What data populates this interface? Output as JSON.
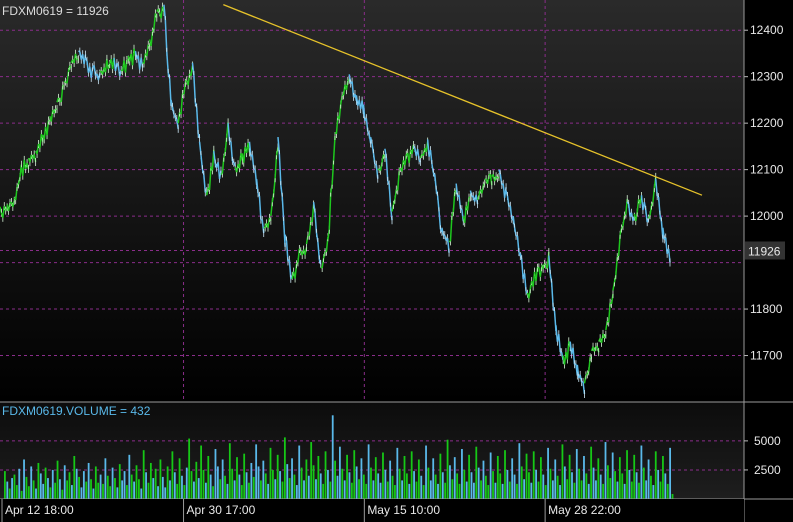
{
  "chart_data": [
    {
      "type": "line",
      "panel": "price",
      "title": "FDXM0619 = 11926",
      "symbol": "FDXM0619",
      "last_value": 11926,
      "last_value_label": "11926",
      "ylim": [
        11600,
        12465
      ],
      "y_ticks": [
        11700,
        11800,
        11900,
        12000,
        12100,
        12200,
        12300,
        12400
      ],
      "y_tick_labels": [
        "11700",
        "11800",
        "",
        "12000",
        "12100",
        "12200",
        "12300",
        "12400"
      ],
      "x_labels": [
        "Apr 12 18:00",
        "Apr 30 17:00",
        "May 15 10:00",
        "May 28 22:00"
      ],
      "x_label_positions": [
        0.0,
        0.244,
        0.487,
        0.73
      ],
      "grid": true,
      "colors": {
        "up": "#1ec81e",
        "down": "#5ab9ea",
        "trendline": "#e6c22a",
        "grid": "#8a2d8a",
        "last_badge_bg": "#333333"
      },
      "series": [
        {
          "values": [
            12020,
            12025,
            12040,
            12105,
            12125,
            12140,
            12175,
            12215,
            12245,
            12290,
            12330,
            12355,
            12340,
            12320,
            12310,
            12335,
            12340,
            12315,
            12345,
            12355,
            12330,
            12380,
            12440,
            12455,
            12250,
            12200,
            12290,
            12330,
            12160,
            12045,
            12140,
            12090,
            12200,
            12105,
            12135,
            12160,
            12080,
            11975,
            12000,
            12170,
            11960,
            11865,
            11930,
            11940,
            12030,
            11890,
            11950,
            12180,
            12260,
            12305,
            12260,
            12240,
            12170,
            12100,
            12145,
            12010,
            12100,
            12130,
            12150,
            12125,
            12165,
            12090,
            11975,
            11945,
            12070,
            12000,
            12055,
            12035,
            12080,
            12085,
            12100,
            12055,
            12000,
            11920,
            11835,
            11880,
            11895,
            11915,
            11765,
            11700,
            11730,
            11680,
            11640,
            11710,
            11730,
            11755,
            11840,
            11960,
            12030,
            12005,
            12045,
            11995,
            12080,
            11975,
            11925
          ]
        },
        {
          "name": "trendline",
          "x": [
            0.28,
            0.885
          ],
          "values": [
            12455,
            12045
          ]
        }
      ]
    },
    {
      "type": "bar",
      "panel": "volume",
      "title": "FDXM0619.VOLUME = 432",
      "series_name": "FDXM0619.VOLUME",
      "last_value": 432,
      "ylim": [
        0,
        8000
      ],
      "y_ticks": [
        2500,
        5000
      ],
      "y_tick_labels": [
        "2500",
        "5000"
      ],
      "colors": {
        "up": "#16c816",
        "down": "#5ab9ea"
      },
      "values": [
        2400,
        1500,
        900,
        1800,
        2100,
        1200,
        2600,
        700,
        3400,
        1900,
        1100,
        2800,
        1600,
        900,
        3100,
        2200,
        1300,
        2700,
        1800,
        1000,
        2500,
        1400,
        3300,
        1700,
        800,
        2900,
        1600,
        2300,
        1200,
        3700,
        2600,
        1900,
        1000,
        2400,
        1500,
        3100,
        1700,
        900,
        2800,
        1400,
        2100,
        1300,
        3500,
        2000,
        1100,
        2700,
        1800,
        1000,
        3000,
        1600,
        2400,
        1200,
        3800,
        2100,
        1500,
        2900,
        1700,
        900,
        4200,
        2300,
        1400,
        3100,
        1800,
        2600,
        1100,
        3400,
        1900,
        1000,
        2800,
        1600,
        4100,
        2300,
        1300,
        3500,
        2000,
        1200,
        2700,
        5200,
        2400,
        1500,
        3200,
        1800,
        4600,
        2500,
        1400,
        3700,
        2100,
        1100,
        4300,
        2800,
        1700,
        3400,
        2000,
        1300,
        4800,
        2600,
        1600,
        3600,
        2100,
        1200,
        3900,
        2300,
        1400,
        3100,
        1900,
        4700,
        2800,
        1600,
        3300,
        2200,
        1300,
        4400,
        2500,
        1700,
        3800,
        2400,
        1500,
        5300,
        3000,
        1800,
        3500,
        2100,
        1200,
        4600,
        2700,
        1600,
        3400,
        2000,
        4900,
        2900,
        1700,
        3700,
        2200,
        1300,
        4100,
        2500,
        1500,
        7200,
        3300,
        2000,
        4500,
        2600,
        1600,
        3800,
        2300,
        1400,
        4200,
        2800,
        1700,
        3500,
        2100,
        1300,
        4700,
        2700,
        1600,
        3600,
        2200,
        1400,
        4000,
        2500,
        1500,
        3300,
        2000,
        1200,
        4400,
        2600,
        1600,
        3700,
        2200,
        1300,
        4100,
        2400,
        1500,
        3400,
        2000,
        1200,
        4600,
        2700,
        1600,
        3500,
        2100,
        1300,
        3900,
        2300,
        1400,
        5100,
        2900,
        1700,
        3600,
        2200,
        1300,
        4300,
        2500,
        1500,
        3800,
        2300,
        1400,
        4500,
        2700,
        1600,
        3300,
        2000,
        1200,
        4000,
        2400,
        1400,
        3700,
        2200,
        1300,
        4200,
        2500,
        1500,
        3500,
        2100,
        1300,
        4800,
        2800,
        1700,
        3900,
        2300,
        1400,
        4100,
        2500,
        1500,
        3600,
        2100,
        1200,
        4400,
        2600,
        1600,
        3400,
        2000,
        1200,
        4700,
        2800,
        1700,
        3800,
        2300,
        1400,
        4300,
        2600,
        1600,
        3700,
        2200,
        1300,
        4500,
        2700,
        1600,
        3500,
        2100,
        1300,
        4900,
        2900,
        1800,
        4000,
        2400,
        1500,
        3600,
        2200,
        1300,
        4200,
        2500,
        1500,
        3800,
        2300,
        1400,
        4600,
        2700,
        1600,
        3400,
        2000,
        1200,
        4100,
        2500,
        1500,
        3700,
        2200,
        1300,
        4400,
        432
      ],
      "up_flags_seed": 7
    }
  ]
}
